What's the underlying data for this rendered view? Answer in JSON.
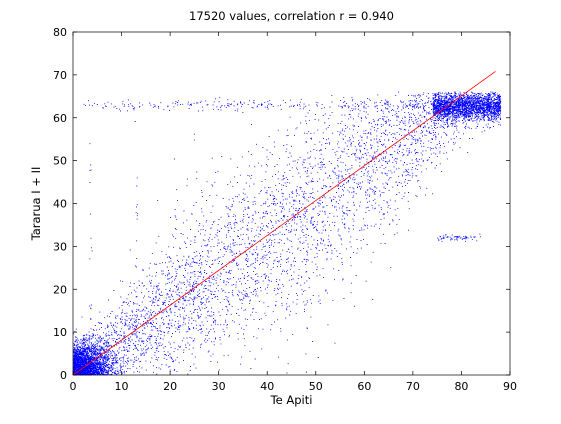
{
  "chart_data": {
    "type": "scatter",
    "title": "17520 values, correlation r = 0.940",
    "xlabel": "Te Apiti",
    "ylabel": "Tararua I + II",
    "xlim": [
      0,
      90
    ],
    "ylim": [
      0,
      80
    ],
    "xticks": [
      0,
      10,
      20,
      30,
      40,
      50,
      60,
      70,
      80,
      90
    ],
    "yticks": [
      0,
      10,
      20,
      30,
      40,
      50,
      60,
      70,
      80
    ],
    "n_points": 17520,
    "correlation_r": 0.94,
    "grid": false,
    "colors": {
      "points": "#0000ff",
      "fit_line": "#ff0000",
      "axes": "#000000"
    },
    "fit_line": {
      "x": [
        0,
        87
      ],
      "y": [
        0,
        70.8
      ]
    },
    "point_clusters": [
      {
        "desc": "dense near origin",
        "x_range": [
          0,
          8
        ],
        "y_range": [
          0,
          8
        ]
      },
      {
        "desc": "saturation cluster",
        "x_range": [
          74,
          88
        ],
        "y_range": [
          60,
          66
        ]
      },
      {
        "desc": "upper ceiling band",
        "x_range": [
          2,
          80
        ],
        "y": 63
      }
    ]
  }
}
